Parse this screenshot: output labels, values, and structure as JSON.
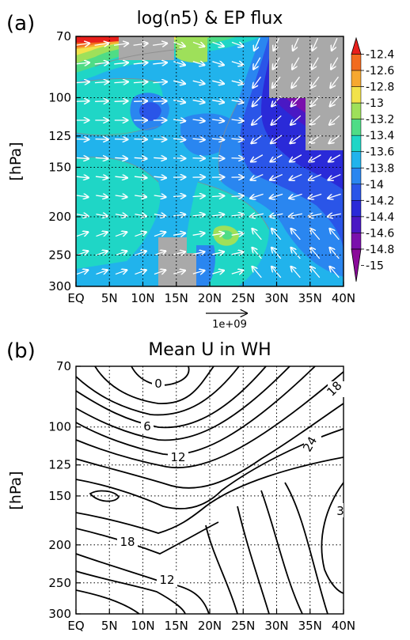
{
  "chart_data": [
    {
      "type": "contour",
      "panel_label": "(a)",
      "title": "log(n5) & EP flux",
      "ylabel": "[hPa]",
      "x_ticks": [
        "EQ",
        "5N",
        "10N",
        "15N",
        "20N",
        "25N",
        "30N",
        "35N",
        "40N"
      ],
      "x_values": [
        0,
        5,
        10,
        15,
        20,
        25,
        30,
        35,
        40
      ],
      "y_ticks": [
        "70",
        "100",
        "125",
        "150",
        "200",
        "250",
        "300"
      ],
      "y_values": [
        70,
        100,
        125,
        150,
        200,
        250,
        300
      ],
      "y_scale": "log",
      "ylim": [
        300,
        70
      ],
      "xlim": [
        0,
        40
      ],
      "colorbar_labels": [
        "-12.4",
        "-12.6",
        "-12.8",
        "-13",
        "-13.2",
        "-13.4",
        "-13.6",
        "-13.8",
        "-14",
        "-14.2",
        "-14.4",
        "-14.6",
        "-14.8",
        "-15"
      ],
      "colorbar_colors": [
        "#e8201c",
        "#f26b1f",
        "#f6a830",
        "#f2e24a",
        "#9ee05a",
        "#4fdc86",
        "#1fd6c6",
        "#21b3ec",
        "#2a86f0",
        "#2a55e8",
        "#2a2ad8",
        "#4a18c4",
        "#7a10ac",
        "#8a0a9a"
      ],
      "reference_vector_label": "1e+09",
      "grid": "dotted"
    },
    {
      "type": "contour",
      "panel_label": "(b)",
      "title": "Mean U in WH",
      "ylabel": "[hPa]",
      "x_ticks": [
        "EQ",
        "5N",
        "10N",
        "15N",
        "20N",
        "25N",
        "30N",
        "35N",
        "40N"
      ],
      "x_values": [
        0,
        5,
        10,
        15,
        20,
        25,
        30,
        35,
        40
      ],
      "y_ticks": [
        "70",
        "100",
        "125",
        "150",
        "200",
        "250",
        "300"
      ],
      "y_values": [
        70,
        100,
        125,
        150,
        200,
        250,
        300
      ],
      "y_scale": "log",
      "ylim": [
        300,
        70
      ],
      "xlim": [
        0,
        40
      ],
      "contour_labels": [
        "0",
        "6",
        "12",
        "18",
        "24",
        "3",
        "18",
        "12"
      ],
      "grid": "dotted"
    }
  ]
}
